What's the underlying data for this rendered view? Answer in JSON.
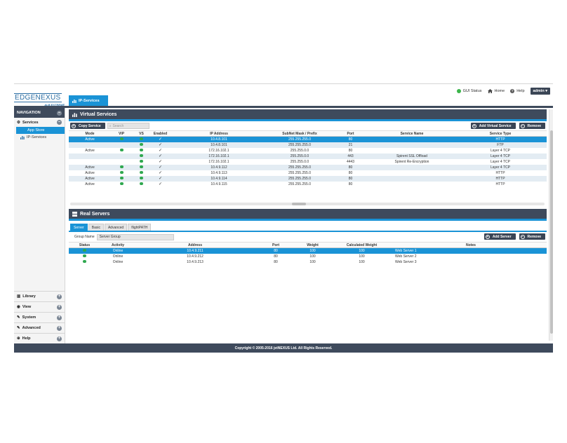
{
  "logo": {
    "main": "EDGENEXUS",
    "sub": "ALB EXTREME"
  },
  "top_tab": {
    "label": "IP-Services"
  },
  "header": {
    "gui_status": "GUI Status",
    "home": "Home",
    "help": "Help",
    "user": "admin"
  },
  "sidebar": {
    "nav_title": "NAVIGATION",
    "services_label": "Services",
    "sub_items": [
      "App Store",
      "IP-Services"
    ],
    "bottom_items": [
      "Library",
      "View",
      "System",
      "Advanced",
      "Help"
    ]
  },
  "virtual_services": {
    "title": "Virtual Services",
    "copy_button": "Copy Service",
    "search_placeholder": "Search",
    "add_button": "Add Virtual Service",
    "remove_button": "Remove",
    "columns": [
      "Mode",
      "VIP",
      "VS",
      "Enabled",
      "IP Address",
      "SubNet Mask / Prefix",
      "Port",
      "Service Name",
      "Service Type"
    ],
    "rows": [
      {
        "mode": "Active",
        "vip": true,
        "vs": true,
        "enabled": true,
        "ip": "10.4.8.101",
        "mask": "255.255.255.0",
        "port": "80",
        "name": "",
        "type": "HTTP"
      },
      {
        "mode": "",
        "vip": false,
        "vs": true,
        "enabled": true,
        "ip": "10.4.8.101",
        "mask": "255.255.255.0",
        "port": "21",
        "name": "",
        "type": "FTP"
      },
      {
        "mode": "Active",
        "vip": true,
        "vs": true,
        "enabled": true,
        "ip": "172.16.102.1",
        "mask": "255.255.0.0",
        "port": "80",
        "name": "",
        "type": "Layer 4 TCP"
      },
      {
        "mode": "",
        "vip": false,
        "vs": true,
        "enabled": true,
        "ip": "172.16.102.1",
        "mask": "255.255.0.0",
        "port": "443",
        "name": "Spirent SSL Offload",
        "type": "Layer 4 TCP"
      },
      {
        "mode": "",
        "vip": false,
        "vs": true,
        "enabled": true,
        "ip": "172.16.102.1",
        "mask": "255.255.0.0",
        "port": "4443",
        "name": "Spirent Re-Encryption",
        "type": "Layer 4 TCP"
      },
      {
        "mode": "Active",
        "vip": true,
        "vs": true,
        "enabled": true,
        "ip": "10.4.9.112",
        "mask": "255.255.255.0",
        "port": "80",
        "name": "",
        "type": "Layer 4 TCP"
      },
      {
        "mode": "Active",
        "vip": true,
        "vs": true,
        "enabled": true,
        "ip": "10.4.9.113",
        "mask": "255.255.255.0",
        "port": "80",
        "name": "",
        "type": "HTTP"
      },
      {
        "mode": "Active",
        "vip": true,
        "vs": true,
        "enabled": true,
        "ip": "10.4.9.114",
        "mask": "255.255.255.0",
        "port": "80",
        "name": "",
        "type": "HTTP"
      },
      {
        "mode": "Active",
        "vip": true,
        "vs": true,
        "enabled": true,
        "ip": "10.4.9.115",
        "mask": "255.255.255.0",
        "port": "80",
        "name": "",
        "type": "HTTP"
      }
    ]
  },
  "real_servers": {
    "title": "Real Servers",
    "tabs": [
      "Server",
      "Basic",
      "Advanced",
      "flightPATH"
    ],
    "group_label": "Group Name",
    "group_value": "Server Group",
    "add_button": "Add Server",
    "remove_button": "Remove",
    "columns": [
      "Status",
      "Activity",
      "Address",
      "Port",
      "Weight",
      "Calculated Weight",
      "Notes"
    ],
    "rows": [
      {
        "activity": "Online",
        "address": "10.4.9.211",
        "port": "80",
        "weight": "100",
        "calc": "100",
        "notes": "Web Server 1"
      },
      {
        "activity": "Online",
        "address": "10.4.9.212",
        "port": "80",
        "weight": "100",
        "calc": "100",
        "notes": "Web Server 2"
      },
      {
        "activity": "Online",
        "address": "10.4.9.213",
        "port": "80",
        "weight": "100",
        "calc": "100",
        "notes": "Web Server 3"
      }
    ]
  },
  "footer": "Copyright © 2005-2016 jetNEXUS Ltd. All Rights Reserved.",
  "colors": {
    "accent": "#1a93d6",
    "dark": "#3e4a5c",
    "status_green": "#2fa84f"
  }
}
